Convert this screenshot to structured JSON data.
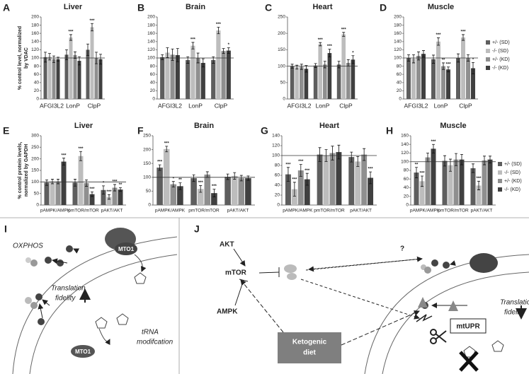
{
  "chart_data": [
    {
      "type": "bar",
      "panel": "A",
      "title": "Liver",
      "y_label": [
        "% control level, normalized",
        "by VDAC"
      ],
      "categories": [
        "AFGI3L2",
        "LonP",
        "ClpP"
      ],
      "ylim": [
        0,
        200
      ],
      "yticks": [
        0,
        20,
        40,
        60,
        80,
        100,
        120,
        140,
        160,
        180,
        200
      ],
      "ref_line": 100,
      "series": [
        {
          "color": "#5e5e5e",
          "values": [
            102,
            108,
            120
          ],
          "errors": [
            12,
            12,
            14
          ],
          "sig": [
            null,
            null,
            null
          ]
        },
        {
          "color": "#bdbdbd",
          "values": [
            103,
            150,
            175
          ],
          "errors": [
            8,
            7,
            9
          ],
          "sig": [
            null,
            "***",
            "***"
          ]
        },
        {
          "color": "#8f8f8f",
          "values": [
            97,
            107,
            100
          ],
          "errors": [
            8,
            8,
            14
          ],
          "sig": [
            null,
            null,
            null
          ]
        },
        {
          "color": "#404040",
          "values": [
            97,
            93,
            97
          ],
          "errors": [
            5,
            10,
            12
          ],
          "sig": [
            null,
            null,
            null
          ]
        }
      ]
    },
    {
      "type": "bar",
      "panel": "B",
      "title": "Brain",
      "categories": [
        "AFGI3L2",
        "LonP",
        "ClpP"
      ],
      "ylim": [
        0,
        200
      ],
      "yticks": [
        0,
        20,
        40,
        60,
        80,
        100,
        120,
        140,
        160,
        180,
        200
      ],
      "ref_line": 100,
      "series": [
        {
          "color": "#5e5e5e",
          "values": [
            102,
            95,
            95
          ],
          "errors": [
            6,
            8,
            8
          ],
          "sig": [
            null,
            null,
            null
          ]
        },
        {
          "color": "#bdbdbd",
          "values": [
            113,
            130,
            167
          ],
          "errors": [
            12,
            8,
            8
          ],
          "sig": [
            null,
            "***",
            "***"
          ]
        },
        {
          "color": "#8f8f8f",
          "values": [
            108,
            100,
            117
          ],
          "errors": [
            14,
            12,
            6
          ],
          "sig": [
            null,
            null,
            null
          ]
        },
        {
          "color": "#404040",
          "values": [
            107,
            88,
            118
          ],
          "errors": [
            16,
            10,
            7
          ],
          "sig": [
            null,
            null,
            "*"
          ]
        }
      ]
    },
    {
      "type": "bar",
      "panel": "C",
      "title": "Heart",
      "categories": [
        "AFGI3L2",
        "LonP",
        "ClpP"
      ],
      "ylim": [
        0,
        250
      ],
      "yticks": [
        0,
        50,
        100,
        150,
        200,
        250
      ],
      "ref_line": 100,
      "series": [
        {
          "color": "#5e5e5e",
          "values": [
            100,
            102,
            105
          ],
          "errors": [
            6,
            6,
            10
          ],
          "sig": [
            null,
            null,
            null
          ]
        },
        {
          "color": "#bdbdbd",
          "values": [
            97,
            167,
            197
          ],
          "errors": [
            6,
            5,
            6
          ],
          "sig": [
            null,
            "***",
            "***"
          ]
        },
        {
          "color": "#8f8f8f",
          "values": [
            98,
            105,
            110
          ],
          "errors": [
            8,
            10,
            10
          ],
          "sig": [
            null,
            null,
            null
          ]
        },
        {
          "color": "#404040",
          "values": [
            92,
            140,
            120
          ],
          "errors": [
            10,
            12,
            12
          ],
          "sig": [
            null,
            "***",
            "*"
          ]
        }
      ]
    },
    {
      "type": "bar",
      "panel": "D",
      "title": "Muscle",
      "legend": "right",
      "categories": [
        "AFGI3L2",
        "LonP",
        "ClpP"
      ],
      "ylim": [
        0,
        200
      ],
      "yticks": [
        0,
        20,
        40,
        60,
        80,
        100,
        120,
        140,
        160,
        180,
        200
      ],
      "ref_line": 100,
      "series": [
        {
          "name": "+/- (SD)",
          "color": "#5e5e5e",
          "values": [
            100,
            97,
            100
          ],
          "errors": [
            8,
            10,
            10
          ],
          "sig": [
            null,
            null,
            null
          ]
        },
        {
          "name": "-/- (SD)",
          "color": "#bdbdbd",
          "values": [
            98,
            140,
            150
          ],
          "errors": [
            10,
            9,
            7
          ],
          "sig": [
            null,
            "***",
            "***"
          ]
        },
        {
          "name": "+/- (KD)",
          "color": "#8f8f8f",
          "values": [
            105,
            80,
            100
          ],
          "errors": [
            10,
            8,
            8
          ],
          "sig": [
            null,
            "**",
            null
          ]
        },
        {
          "name": "-/- (KD)",
          "color": "#404040",
          "values": [
            110,
            72,
            75
          ],
          "errors": [
            8,
            6,
            14
          ],
          "sig": [
            null,
            "***",
            "*"
          ]
        }
      ]
    },
    {
      "type": "bar",
      "panel": "E",
      "title": "Liver",
      "y_label": [
        "% control protein levels,",
        "normalized by GAPDH"
      ],
      "categories": [
        "pAMPK/AMPK",
        "pmTOR/mTOR",
        "pAKT/AKT"
      ],
      "ylim": [
        0,
        300
      ],
      "yticks": [
        0,
        50,
        100,
        150,
        200,
        250,
        300
      ],
      "ref_line": 100,
      "series": [
        {
          "color": "#5e5e5e",
          "values": [
            97,
            97,
            65
          ],
          "errors": [
            12,
            15,
            18
          ],
          "sig": [
            null,
            null,
            "*"
          ]
        },
        {
          "color": "#bdbdbd",
          "values": [
            102,
            212,
            35
          ],
          "errors": [
            10,
            20,
            10
          ],
          "sig": [
            null,
            "***",
            "***"
          ]
        },
        {
          "color": "#8f8f8f",
          "values": [
            102,
            95,
            75
          ],
          "errors": [
            10,
            14,
            14
          ],
          "sig": [
            null,
            null,
            "***"
          ]
        },
        {
          "color": "#404040",
          "values": [
            188,
            47,
            67
          ],
          "errors": [
            15,
            10,
            8
          ],
          "sig": [
            "***",
            "***",
            "**"
          ]
        }
      ]
    },
    {
      "type": "bar",
      "panel": "F",
      "title": "Brain",
      "categories": [
        "pAMPK/AMPK",
        "pmTOR/mTOR",
        "pAKT/AKT"
      ],
      "ylim": [
        0,
        250
      ],
      "yticks": [
        0,
        50,
        100,
        150,
        200,
        250
      ],
      "ref_line": 100,
      "series": [
        {
          "color": "#5e5e5e",
          "values": [
            135,
            97,
            102
          ],
          "errors": [
            10,
            12,
            10
          ],
          "sig": [
            "***",
            null,
            null
          ]
        },
        {
          "color": "#bdbdbd",
          "values": [
            202,
            58,
            105
          ],
          "errors": [
            10,
            12,
            12
          ],
          "sig": [
            "***",
            "***",
            null
          ]
        },
        {
          "color": "#8f8f8f",
          "values": [
            75,
            110,
            97
          ],
          "errors": [
            10,
            10,
            10
          ],
          "sig": [
            "*",
            null,
            null
          ]
        },
        {
          "color": "#404040",
          "values": [
            68,
            43,
            97
          ],
          "errors": [
            12,
            14,
            8
          ],
          "sig": [
            "**",
            "***",
            null
          ]
        }
      ]
    },
    {
      "type": "bar",
      "panel": "G",
      "title": "Heart",
      "categories": [
        "pAMPK/AMPK",
        "pmTOR/mTOR",
        "pAKT/AKT"
      ],
      "ylim": [
        0,
        140
      ],
      "yticks": [
        0,
        20,
        40,
        60,
        80,
        100,
        120,
        140
      ],
      "ref_line": 100,
      "series": [
        {
          "color": "#5e5e5e",
          "values": [
            62,
            102,
            97
          ],
          "errors": [
            14,
            14,
            10
          ],
          "sig": [
            "***",
            null,
            null
          ]
        },
        {
          "color": "#bdbdbd",
          "values": [
            32,
            100,
            88
          ],
          "errors": [
            14,
            12,
            10
          ],
          "sig": [
            "***",
            null,
            null
          ]
        },
        {
          "color": "#8f8f8f",
          "values": [
            70,
            105,
            102
          ],
          "errors": [
            12,
            14,
            12
          ],
          "sig": [
            "***",
            null,
            null
          ]
        },
        {
          "color": "#404040",
          "values": [
            52,
            107,
            55
          ],
          "errors": [
            12,
            14,
            12
          ],
          "sig": [
            "***",
            null,
            "***"
          ]
        }
      ]
    },
    {
      "type": "bar",
      "panel": "H",
      "title": "Muscle",
      "legend": "right",
      "categories": [
        "pAMPK/AMPK",
        "pmTOR/mTOR",
        "pAKT/AKT"
      ],
      "ylim": [
        0,
        160
      ],
      "yticks": [
        0,
        20,
        40,
        60,
        80,
        100,
        120,
        140,
        160
      ],
      "ref_line": 100,
      "series": [
        {
          "name": "+/- (SD)",
          "color": "#5e5e5e",
          "values": [
            75,
            102,
            85
          ],
          "errors": [
            12,
            12,
            10
          ],
          "sig": [
            "**",
            null,
            null
          ]
        },
        {
          "name": "-/- (SD)",
          "color": "#bdbdbd",
          "values": [
            55,
            92,
            45
          ],
          "errors": [
            12,
            14,
            10
          ],
          "sig": [
            "***",
            null,
            "***"
          ]
        },
        {
          "name": "+/- (KD)",
          "color": "#8f8f8f",
          "values": [
            110,
            105,
            103
          ],
          "errors": [
            10,
            14,
            10
          ],
          "sig": [
            null,
            null,
            null
          ]
        },
        {
          "name": "-/- (KD)",
          "color": "#404040",
          "values": [
            130,
            105,
            105
          ],
          "errors": [
            10,
            12,
            8
          ],
          "sig": [
            "***",
            null,
            null
          ]
        }
      ]
    }
  ],
  "diagram_i": {
    "panel": "I",
    "oxphos": "OXPHOS",
    "enzyme": "MTO1",
    "fidelity": [
      "Translation",
      "fidelity"
    ],
    "modification": [
      "tRNA",
      "modifcation"
    ],
    "enzyme_lower": "MTO1"
  },
  "diagram_j": {
    "panel": "J",
    "akt": "AKT",
    "mtor": "mTOR",
    "ampk": "AMPK",
    "question": "?",
    "fidelity": [
      "Translation",
      "fidelity"
    ],
    "mtupr": "mtUPR",
    "diet": [
      "Ketogenic",
      "diet"
    ]
  }
}
